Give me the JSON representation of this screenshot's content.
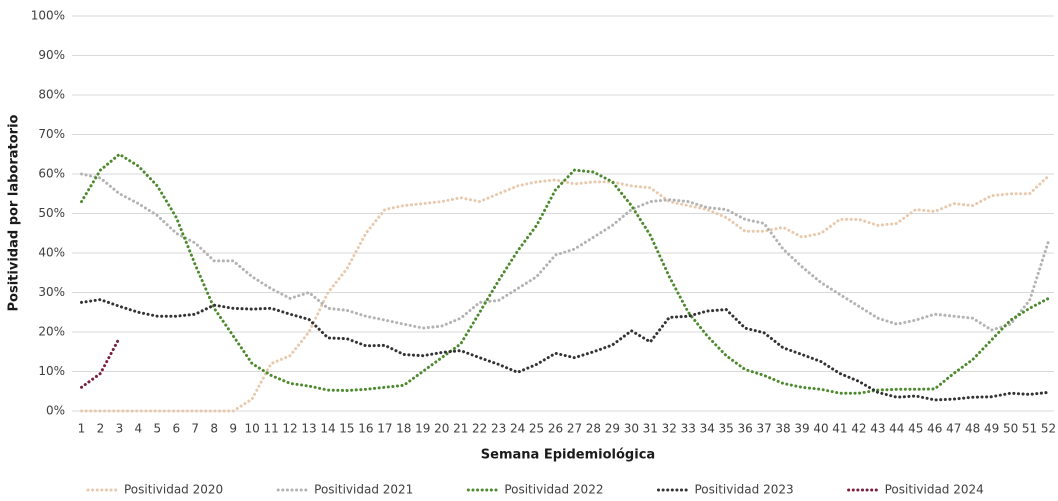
{
  "chart_data": {
    "type": "line",
    "x_label": "Semana Epidemiológica",
    "y_label": "Positividad por laboratorio",
    "categories": [
      "1",
      "2",
      "3",
      "4",
      "5",
      "6",
      "7",
      "8",
      "9",
      "10",
      "11",
      "12",
      "13",
      "14",
      "15",
      "16",
      "17",
      "18",
      "19",
      "20",
      "21",
      "22",
      "23",
      "24",
      "25",
      "26",
      "27",
      "28",
      "29",
      "30",
      "31",
      "32",
      "33",
      "34",
      "35",
      "36",
      "37",
      "38",
      "39",
      "40",
      "41",
      "42",
      "43",
      "44",
      "45",
      "46",
      "47",
      "48",
      "49",
      "50",
      "51",
      "52"
    ],
    "ylim": [
      0,
      100
    ],
    "yticks": [
      {
        "value": 0,
        "label": "0%"
      },
      {
        "value": 10,
        "label": "10%"
      },
      {
        "value": 20,
        "label": "20%"
      },
      {
        "value": 30,
        "label": "30%"
      },
      {
        "value": 40,
        "label": "40%"
      },
      {
        "value": 50,
        "label": "50%"
      },
      {
        "value": 60,
        "label": "60%"
      },
      {
        "value": 70,
        "label": "70%"
      },
      {
        "value": 80,
        "label": "80%"
      },
      {
        "value": 90,
        "label": "90%"
      },
      {
        "value": 100,
        "label": "100%"
      }
    ],
    "grid": true,
    "legend": "bottom",
    "series": [
      {
        "name": "Positividad 2020",
        "color": "#e8c9ad",
        "values": [
          0,
          0,
          0,
          0,
          0,
          0,
          0,
          0,
          0,
          3,
          12,
          14,
          20,
          30,
          36,
          45,
          51,
          52,
          52.5,
          53,
          54,
          53,
          55,
          57,
          58,
          58.5,
          57.5,
          58,
          58,
          57,
          56.5,
          53,
          52,
          51,
          49,
          45.5,
          45.5,
          46.5,
          44,
          45,
          48.5,
          48.5,
          47,
          47.5,
          51,
          50.5,
          52.5,
          52,
          54.5,
          55,
          55,
          59.5
        ]
      },
      {
        "name": "Positividad 2021",
        "color": "#b3b3b3",
        "values": [
          60,
          59,
          55,
          52.5,
          49.5,
          45,
          42.5,
          38,
          38,
          34,
          31,
          28.5,
          30,
          26,
          25.5,
          24,
          23,
          22,
          21,
          21.5,
          23.5,
          27.5,
          28,
          31,
          34,
          39.5,
          41,
          44,
          47,
          51,
          53,
          53.5,
          53,
          51.5,
          51,
          48.5,
          47.5,
          41,
          36.5,
          32.5,
          29.5,
          26.5,
          23.5,
          22,
          23,
          24.5,
          24,
          23.5,
          20.5,
          22,
          28,
          43
        ]
      },
      {
        "name": "Positividad 2022",
        "color": "#4d8a2e",
        "values": [
          53,
          61,
          65,
          62,
          57,
          49,
          37,
          26,
          19,
          12,
          9,
          7,
          6.3,
          5.3,
          5.2,
          5.5,
          6,
          6.5,
          10,
          13.5,
          17,
          25,
          33,
          40.5,
          47,
          56,
          61,
          60.5,
          58,
          52,
          44.5,
          34,
          25,
          19,
          14,
          10.5,
          9,
          7,
          6,
          5.5,
          4.5,
          4.5,
          5.3,
          5.5,
          5.5,
          5.6,
          9.5,
          13,
          18,
          23,
          26,
          28.5
        ]
      },
      {
        "name": "Positividad 2023",
        "color": "#333333",
        "values": [
          27.5,
          28.2,
          26.5,
          25,
          24,
          24,
          24.5,
          26.8,
          26,
          25.8,
          26,
          24.5,
          23.2,
          18.5,
          18.3,
          16.5,
          16.6,
          14.3,
          14,
          14.8,
          15.3,
          13.5,
          11.8,
          9.8,
          11.8,
          14.6,
          13.5,
          15,
          16.7,
          20.3,
          17.5,
          23.7,
          24,
          25.3,
          25.7,
          21,
          19.8,
          16,
          14.3,
          12.5,
          9.5,
          7.5,
          4.7,
          3.5,
          3.8,
          2.8,
          3,
          3.5,
          3.6,
          4.5,
          4.2,
          4.7
        ]
      },
      {
        "name": "Positividad 2024",
        "color": "#7a1f3d",
        "values": [
          6,
          9.5,
          18.5,
          null,
          null,
          null,
          null,
          null,
          null,
          null,
          null,
          null,
          null,
          null,
          null,
          null,
          null,
          null,
          null,
          null,
          null,
          null,
          null,
          null,
          null,
          null,
          null,
          null,
          null,
          null,
          null,
          null,
          null,
          null,
          null,
          null,
          null,
          null,
          null,
          null,
          null,
          null,
          null,
          null,
          null,
          null,
          null,
          null,
          null,
          null,
          null,
          null
        ]
      }
    ]
  }
}
